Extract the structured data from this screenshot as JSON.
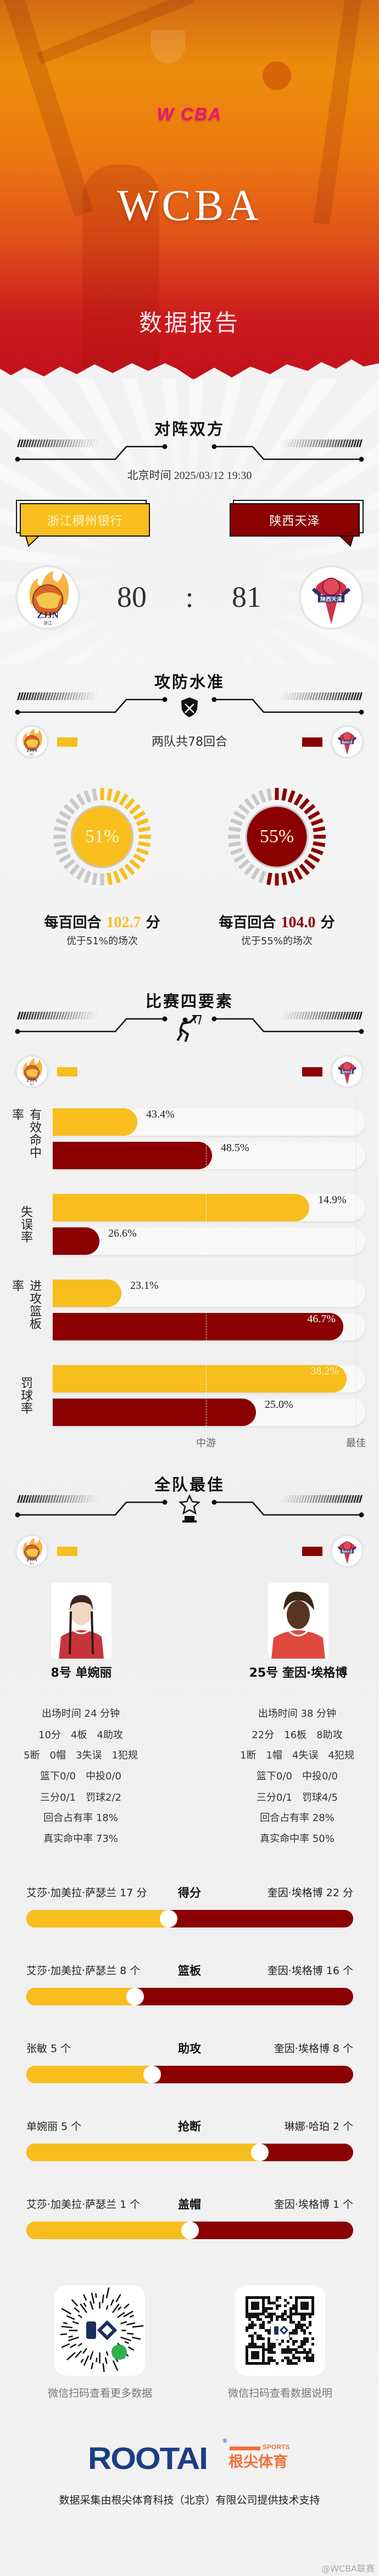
{
  "colors": {
    "home": "#f7be1e",
    "away": "#8b0000",
    "gauge_track": "#c8c8c8"
  },
  "hero": {
    "logo_text": "W CBA",
    "title": "WCBA",
    "subtitle": "数据报告"
  },
  "matchup": {
    "title": "对阵双方",
    "datetime": "北京时间 2025/03/12 19:30",
    "separator": ":",
    "home": {
      "name": "浙江稠州银行",
      "score": "80",
      "logo_text": "ZJJN",
      "logo_subtext": "浙江"
    },
    "away": {
      "name": "陕西天泽",
      "score": "81",
      "logo_text": "陕西天泽",
      "logo_subtext": "SHAANXI TIANZE"
    }
  },
  "efficiency": {
    "title": "攻防水准",
    "icon": "shield-swords-icon",
    "possessions": "两队共78回合",
    "home": {
      "percentile": 51,
      "percent_label": "51%",
      "prefix": "每百回合",
      "rating": "102.7",
      "suffix": "分",
      "better": "优于51%的场次"
    },
    "away": {
      "percentile": 55,
      "percent_label": "55%",
      "prefix": "每百回合",
      "rating": "104.0",
      "suffix": "分",
      "better": "优于55%的场次"
    }
  },
  "four_factors": {
    "title": "比赛四要素",
    "icon": "basketball-dunk-icon",
    "axis": {
      "mid": "中游",
      "best": "最佳"
    },
    "factors": [
      {
        "label": "有效命中率",
        "home": {
          "value": "43.4%",
          "rank": 0.27
        },
        "away": {
          "value": "48.5%",
          "rank": 0.51
        }
      },
      {
        "label": "失误率",
        "home": {
          "value": "14.9%",
          "rank": 0.82
        },
        "away": {
          "value": "26.6%",
          "rank": 0.15
        }
      },
      {
        "label": "进攻篮板率",
        "home": {
          "value": "23.1%",
          "rank": 0.22
        },
        "away": {
          "value": "46.7%",
          "rank": 0.93
        }
      },
      {
        "label": "罚球率",
        "home": {
          "value": "38.2%",
          "rank": 0.94
        },
        "away": {
          "value": "25.0%",
          "rank": 0.65
        }
      }
    ]
  },
  "best_players": {
    "title": "全队最佳",
    "icon": "star-trophy-icon",
    "home": {
      "name": "8号 单婉丽",
      "lines": [
        [
          "出场时间 24 分钟"
        ],
        [
          "10分",
          "4板",
          "4助攻"
        ],
        [
          "5断",
          "0帽",
          "3失误",
          "1犯规"
        ],
        [
          "篮下0/0",
          "中投0/0"
        ],
        [
          "三分0/1",
          "罚球2/2"
        ],
        [
          "回合占有率 18%"
        ],
        [
          "真实命中率 73%"
        ]
      ]
    },
    "away": {
      "name": "25号 奎因·埃格博",
      "lines": [
        [
          "出场时间 38 分钟"
        ],
        [
          "22分",
          "16板",
          "8助攻"
        ],
        [
          "1断",
          "1帽",
          "4失误",
          "4犯规"
        ],
        [
          "篮下0/0",
          "中投0/0"
        ],
        [
          "三分0/1",
          "罚球4/5"
        ],
        [
          "回合占有率 28%"
        ],
        [
          "真实命中率 50%"
        ]
      ]
    }
  },
  "leaders": [
    {
      "category": "得分",
      "home": "艾莎·加美拉·萨瑟兰 17 分",
      "away": "奎因·埃格博 22 分",
      "home_value": 17,
      "away_value": 22
    },
    {
      "category": "篮板",
      "home": "艾莎·加美拉·萨瑟兰 8 个",
      "away": "奎因·埃格博 16 个",
      "home_value": 8,
      "away_value": 16
    },
    {
      "category": "助攻",
      "home": "张敏 5 个",
      "away": "奎因·埃格博 8 个",
      "home_value": 5,
      "away_value": 8
    },
    {
      "category": "抢断",
      "home": "单婉丽 5 个",
      "away": "琳娜·哈珀 2 个",
      "home_value": 5,
      "away_value": 2
    },
    {
      "category": "盖帽",
      "home": "艾莎·加美拉·萨瑟兰 1 个",
      "away": "奎因·埃格博 1 个",
      "home_value": 1,
      "away_value": 1
    }
  ],
  "footer": {
    "qr_left_caption": "微信扫码查看更多数据",
    "qr_right_caption": "微信扫码查看数据说明",
    "brand": "ROOTAI",
    "brand_sports": "SPORTS",
    "brand_cn": "根尖体育",
    "note": "数据采集由根尖体育科技（北京）有限公司提供技术支持",
    "watermark": "@WCBA联赛"
  }
}
